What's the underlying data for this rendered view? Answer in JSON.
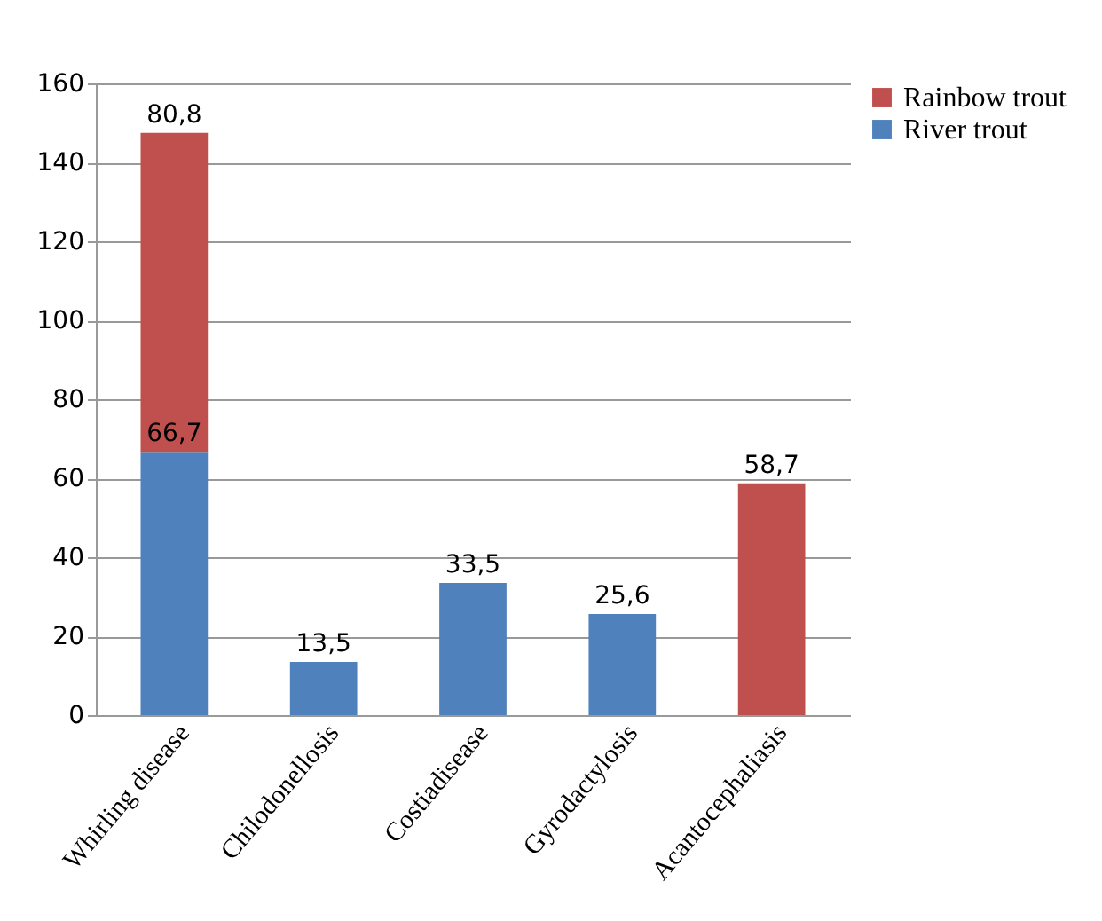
{
  "chart_data": {
    "type": "bar",
    "stacked": true,
    "categories": [
      "Whirling disease",
      "Chilodonellosis",
      "Costiadisease",
      "Gyrodactylosis",
      "Acantocephaliasis"
    ],
    "series": [
      {
        "name": "River trout",
        "color": "#4f81bd",
        "values": [
          66.7,
          13.5,
          33.5,
          25.6,
          null
        ],
        "value_labels": [
          "66,7",
          "13,5",
          "33,5",
          "25,6",
          null
        ]
      },
      {
        "name": "Rainbow trout",
        "color": "#c0504d",
        "values": [
          80.8,
          null,
          null,
          null,
          58.7
        ],
        "value_labels": [
          "80,8",
          null,
          null,
          null,
          "58,7"
        ]
      }
    ],
    "ylim": [
      0,
      160
    ],
    "yticks": [
      0,
      20,
      40,
      60,
      80,
      100,
      120,
      140,
      160
    ],
    "grid": "y",
    "legend": "right"
  }
}
